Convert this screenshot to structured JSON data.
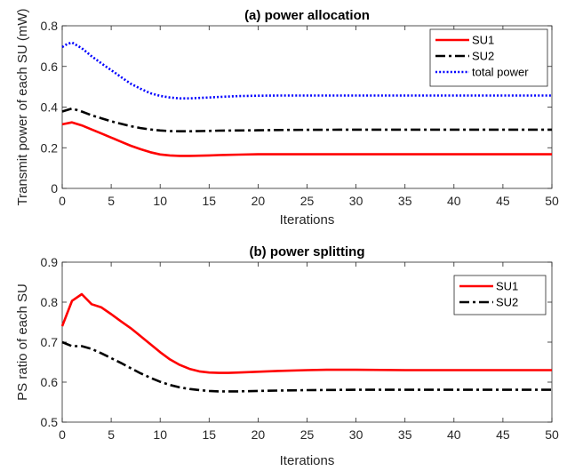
{
  "chart_data": [
    {
      "type": "line",
      "title": "(a) power allocation",
      "xlabel": "Iterations",
      "ylabel": "Transmit power of each SU (mW)",
      "xlim": [
        0,
        50
      ],
      "ylim": [
        0,
        0.8
      ],
      "xticks": [
        0,
        5,
        10,
        15,
        20,
        25,
        30,
        35,
        40,
        45,
        50
      ],
      "yticks": [
        0,
        0.2,
        0.4,
        0.6,
        0.8
      ],
      "ytick_labels": [
        "0",
        "0.2",
        "0.4",
        "0.6",
        "0.8"
      ],
      "legend_position": "top-right",
      "grid": false,
      "series": [
        {
          "name": "SU1",
          "color": "#ff0000",
          "style": "solid",
          "x": [
            0,
            1,
            2,
            3,
            4,
            5,
            6,
            7,
            8,
            9,
            10,
            11,
            12,
            13,
            14,
            15,
            16,
            18,
            20,
            22,
            25,
            30,
            35,
            40,
            45,
            50
          ],
          "y": [
            0.315,
            0.325,
            0.31,
            0.29,
            0.27,
            0.25,
            0.23,
            0.21,
            0.193,
            0.178,
            0.167,
            0.162,
            0.16,
            0.16,
            0.161,
            0.162,
            0.164,
            0.166,
            0.168,
            0.168,
            0.168,
            0.168,
            0.168,
            0.168,
            0.168,
            0.168
          ]
        },
        {
          "name": "SU2",
          "color": "#000000",
          "style": "dashdot",
          "x": [
            0,
            1,
            2,
            3,
            4,
            5,
            6,
            7,
            8,
            9,
            10,
            11,
            12,
            13,
            14,
            15,
            16,
            18,
            20,
            22,
            25,
            30,
            35,
            40,
            45,
            50
          ],
          "y": [
            0.378,
            0.393,
            0.378,
            0.36,
            0.345,
            0.33,
            0.318,
            0.306,
            0.297,
            0.29,
            0.285,
            0.282,
            0.281,
            0.281,
            0.282,
            0.283,
            0.284,
            0.285,
            0.286,
            0.287,
            0.288,
            0.289,
            0.289,
            0.289,
            0.289,
            0.289
          ]
        },
        {
          "name": "total power",
          "color": "#0000ff",
          "style": "dotted",
          "x": [
            0,
            0.5,
            1,
            2,
            3,
            4,
            5,
            6,
            7,
            8,
            9,
            10,
            11,
            12,
            13,
            14,
            15,
            16,
            18,
            20,
            22,
            25,
            30,
            35,
            40,
            45,
            50
          ],
          "y": [
            0.695,
            0.71,
            0.718,
            0.69,
            0.65,
            0.615,
            0.582,
            0.548,
            0.515,
            0.49,
            0.468,
            0.455,
            0.447,
            0.443,
            0.443,
            0.445,
            0.447,
            0.45,
            0.454,
            0.456,
            0.457,
            0.457,
            0.457,
            0.457,
            0.457,
            0.457,
            0.457
          ]
        }
      ]
    },
    {
      "type": "line",
      "title": "(b) power splitting",
      "xlabel": "Iterations",
      "ylabel": "PS ratio of each SU",
      "xlim": [
        0,
        50
      ],
      "ylim": [
        0.5,
        0.9
      ],
      "xticks": [
        0,
        5,
        10,
        15,
        20,
        25,
        30,
        35,
        40,
        45,
        50
      ],
      "yticks": [
        0.5,
        0.6,
        0.7,
        0.8,
        0.9
      ],
      "ytick_labels": [
        "0.5",
        "0.6",
        "0.7",
        "0.8",
        "0.9"
      ],
      "legend_position": "top-right",
      "grid": false,
      "series": [
        {
          "name": "SU1",
          "color": "#ff0000",
          "style": "solid",
          "x": [
            0,
            1,
            2,
            3,
            4,
            5,
            6,
            7,
            8,
            9,
            10,
            11,
            12,
            13,
            14,
            15,
            16,
            17,
            18,
            20,
            22,
            25,
            27,
            30,
            35,
            40,
            45,
            50
          ],
          "y": [
            0.74,
            0.803,
            0.82,
            0.795,
            0.787,
            0.77,
            0.752,
            0.735,
            0.715,
            0.695,
            0.675,
            0.657,
            0.643,
            0.633,
            0.627,
            0.624,
            0.623,
            0.623,
            0.624,
            0.626,
            0.628,
            0.63,
            0.631,
            0.631,
            0.63,
            0.63,
            0.63,
            0.63
          ]
        },
        {
          "name": "SU2",
          "color": "#000000",
          "style": "dashdot",
          "x": [
            0,
            1,
            2,
            3,
            4,
            5,
            6,
            7,
            8,
            9,
            10,
            11,
            12,
            13,
            14,
            15,
            16,
            17,
            18,
            20,
            22,
            25,
            30,
            35,
            40,
            45,
            50
          ],
          "y": [
            0.7,
            0.69,
            0.69,
            0.683,
            0.672,
            0.66,
            0.648,
            0.635,
            0.622,
            0.611,
            0.601,
            0.593,
            0.587,
            0.583,
            0.58,
            0.578,
            0.577,
            0.577,
            0.577,
            0.578,
            0.579,
            0.58,
            0.581,
            0.581,
            0.581,
            0.581,
            0.581
          ]
        }
      ]
    }
  ]
}
